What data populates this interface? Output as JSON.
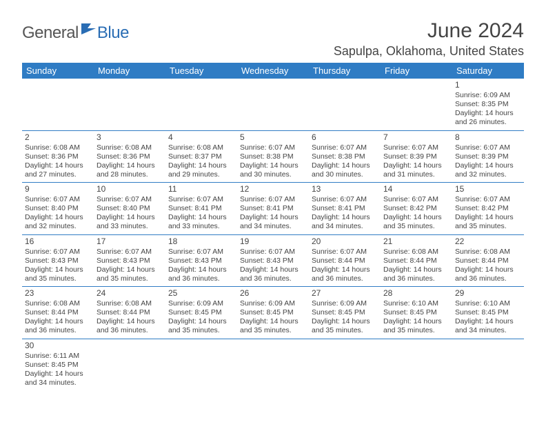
{
  "logo": {
    "general": "General",
    "blue": "Blue"
  },
  "title": "June 2024",
  "location": "Sapulpa, Oklahoma, United States",
  "colors": {
    "header_bg": "#2f7cc4",
    "header_text": "#ffffff",
    "row_border": "#2f7cc4",
    "text": "#444444",
    "logo_gray": "#555555",
    "logo_blue": "#2a6db4"
  },
  "weekdays": [
    "Sunday",
    "Monday",
    "Tuesday",
    "Wednesday",
    "Thursday",
    "Friday",
    "Saturday"
  ],
  "weeks": [
    [
      null,
      null,
      null,
      null,
      null,
      null,
      {
        "n": "1",
        "sr": "Sunrise: 6:09 AM",
        "ss": "Sunset: 8:35 PM",
        "d1": "Daylight: 14 hours",
        "d2": "and 26 minutes."
      }
    ],
    [
      {
        "n": "2",
        "sr": "Sunrise: 6:08 AM",
        "ss": "Sunset: 8:36 PM",
        "d1": "Daylight: 14 hours",
        "d2": "and 27 minutes."
      },
      {
        "n": "3",
        "sr": "Sunrise: 6:08 AM",
        "ss": "Sunset: 8:36 PM",
        "d1": "Daylight: 14 hours",
        "d2": "and 28 minutes."
      },
      {
        "n": "4",
        "sr": "Sunrise: 6:08 AM",
        "ss": "Sunset: 8:37 PM",
        "d1": "Daylight: 14 hours",
        "d2": "and 29 minutes."
      },
      {
        "n": "5",
        "sr": "Sunrise: 6:07 AM",
        "ss": "Sunset: 8:38 PM",
        "d1": "Daylight: 14 hours",
        "d2": "and 30 minutes."
      },
      {
        "n": "6",
        "sr": "Sunrise: 6:07 AM",
        "ss": "Sunset: 8:38 PM",
        "d1": "Daylight: 14 hours",
        "d2": "and 30 minutes."
      },
      {
        "n": "7",
        "sr": "Sunrise: 6:07 AM",
        "ss": "Sunset: 8:39 PM",
        "d1": "Daylight: 14 hours",
        "d2": "and 31 minutes."
      },
      {
        "n": "8",
        "sr": "Sunrise: 6:07 AM",
        "ss": "Sunset: 8:39 PM",
        "d1": "Daylight: 14 hours",
        "d2": "and 32 minutes."
      }
    ],
    [
      {
        "n": "9",
        "sr": "Sunrise: 6:07 AM",
        "ss": "Sunset: 8:40 PM",
        "d1": "Daylight: 14 hours",
        "d2": "and 32 minutes."
      },
      {
        "n": "10",
        "sr": "Sunrise: 6:07 AM",
        "ss": "Sunset: 8:40 PM",
        "d1": "Daylight: 14 hours",
        "d2": "and 33 minutes."
      },
      {
        "n": "11",
        "sr": "Sunrise: 6:07 AM",
        "ss": "Sunset: 8:41 PM",
        "d1": "Daylight: 14 hours",
        "d2": "and 33 minutes."
      },
      {
        "n": "12",
        "sr": "Sunrise: 6:07 AM",
        "ss": "Sunset: 8:41 PM",
        "d1": "Daylight: 14 hours",
        "d2": "and 34 minutes."
      },
      {
        "n": "13",
        "sr": "Sunrise: 6:07 AM",
        "ss": "Sunset: 8:41 PM",
        "d1": "Daylight: 14 hours",
        "d2": "and 34 minutes."
      },
      {
        "n": "14",
        "sr": "Sunrise: 6:07 AM",
        "ss": "Sunset: 8:42 PM",
        "d1": "Daylight: 14 hours",
        "d2": "and 35 minutes."
      },
      {
        "n": "15",
        "sr": "Sunrise: 6:07 AM",
        "ss": "Sunset: 8:42 PM",
        "d1": "Daylight: 14 hours",
        "d2": "and 35 minutes."
      }
    ],
    [
      {
        "n": "16",
        "sr": "Sunrise: 6:07 AM",
        "ss": "Sunset: 8:43 PM",
        "d1": "Daylight: 14 hours",
        "d2": "and 35 minutes."
      },
      {
        "n": "17",
        "sr": "Sunrise: 6:07 AM",
        "ss": "Sunset: 8:43 PM",
        "d1": "Daylight: 14 hours",
        "d2": "and 35 minutes."
      },
      {
        "n": "18",
        "sr": "Sunrise: 6:07 AM",
        "ss": "Sunset: 8:43 PM",
        "d1": "Daylight: 14 hours",
        "d2": "and 36 minutes."
      },
      {
        "n": "19",
        "sr": "Sunrise: 6:07 AM",
        "ss": "Sunset: 8:43 PM",
        "d1": "Daylight: 14 hours",
        "d2": "and 36 minutes."
      },
      {
        "n": "20",
        "sr": "Sunrise: 6:07 AM",
        "ss": "Sunset: 8:44 PM",
        "d1": "Daylight: 14 hours",
        "d2": "and 36 minutes."
      },
      {
        "n": "21",
        "sr": "Sunrise: 6:08 AM",
        "ss": "Sunset: 8:44 PM",
        "d1": "Daylight: 14 hours",
        "d2": "and 36 minutes."
      },
      {
        "n": "22",
        "sr": "Sunrise: 6:08 AM",
        "ss": "Sunset: 8:44 PM",
        "d1": "Daylight: 14 hours",
        "d2": "and 36 minutes."
      }
    ],
    [
      {
        "n": "23",
        "sr": "Sunrise: 6:08 AM",
        "ss": "Sunset: 8:44 PM",
        "d1": "Daylight: 14 hours",
        "d2": "and 36 minutes."
      },
      {
        "n": "24",
        "sr": "Sunrise: 6:08 AM",
        "ss": "Sunset: 8:44 PM",
        "d1": "Daylight: 14 hours",
        "d2": "and 36 minutes."
      },
      {
        "n": "25",
        "sr": "Sunrise: 6:09 AM",
        "ss": "Sunset: 8:45 PM",
        "d1": "Daylight: 14 hours",
        "d2": "and 35 minutes."
      },
      {
        "n": "26",
        "sr": "Sunrise: 6:09 AM",
        "ss": "Sunset: 8:45 PM",
        "d1": "Daylight: 14 hours",
        "d2": "and 35 minutes."
      },
      {
        "n": "27",
        "sr": "Sunrise: 6:09 AM",
        "ss": "Sunset: 8:45 PM",
        "d1": "Daylight: 14 hours",
        "d2": "and 35 minutes."
      },
      {
        "n": "28",
        "sr": "Sunrise: 6:10 AM",
        "ss": "Sunset: 8:45 PM",
        "d1": "Daylight: 14 hours",
        "d2": "and 35 minutes."
      },
      {
        "n": "29",
        "sr": "Sunrise: 6:10 AM",
        "ss": "Sunset: 8:45 PM",
        "d1": "Daylight: 14 hours",
        "d2": "and 34 minutes."
      }
    ],
    [
      {
        "n": "30",
        "sr": "Sunrise: 6:11 AM",
        "ss": "Sunset: 8:45 PM",
        "d1": "Daylight: 14 hours",
        "d2": "and 34 minutes."
      },
      null,
      null,
      null,
      null,
      null,
      null
    ]
  ]
}
